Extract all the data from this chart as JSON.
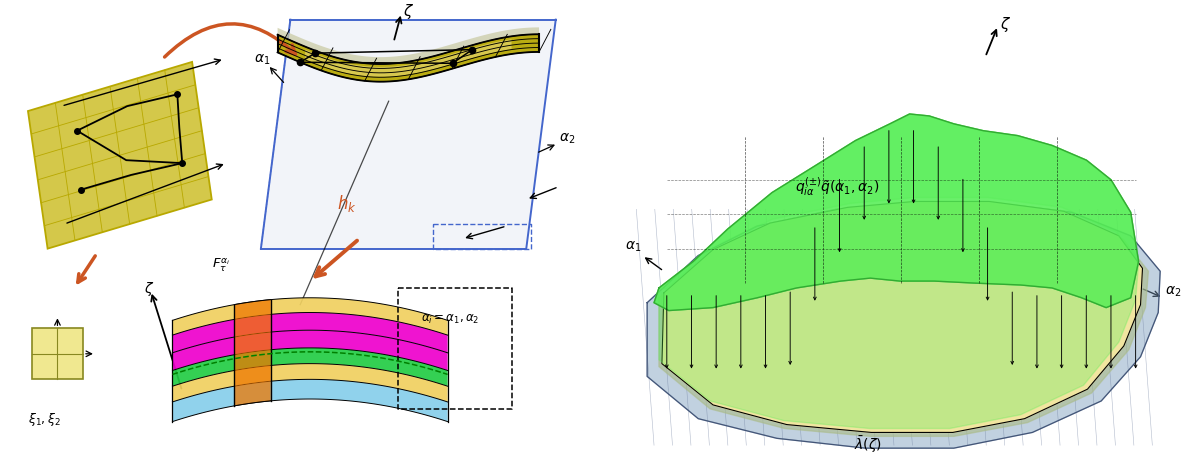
{
  "background_color": "#ffffff",
  "fig_width": 11.97,
  "fig_height": 4.57,
  "flat_grid_light": "#d4c84a",
  "flat_grid_dark": "#b8a800",
  "shell_olive": "#b8a800",
  "shell_light": "#e8d870",
  "shell_gray": "#c8c8a0",
  "shell_blue_outline": "#4466cc",
  "shell_blue_fill": "#aabbdd",
  "layer_blue": "#87ceeb",
  "layer_yellow": "#f0d060",
  "layer_green": "#22cc44",
  "layer_magenta": "#ee00cc",
  "layer_orange": "#ee7700",
  "right_green": "#55ee55",
  "right_green_edge": "#33aa33",
  "right_blue": "#7799bb",
  "right_blue_light": "#aabbdd",
  "right_cream": "#f5e8a0",
  "right_olive": "#aabb88",
  "right_olive2": "#99aa70",
  "brown": "#cc5522",
  "black": "#000000"
}
